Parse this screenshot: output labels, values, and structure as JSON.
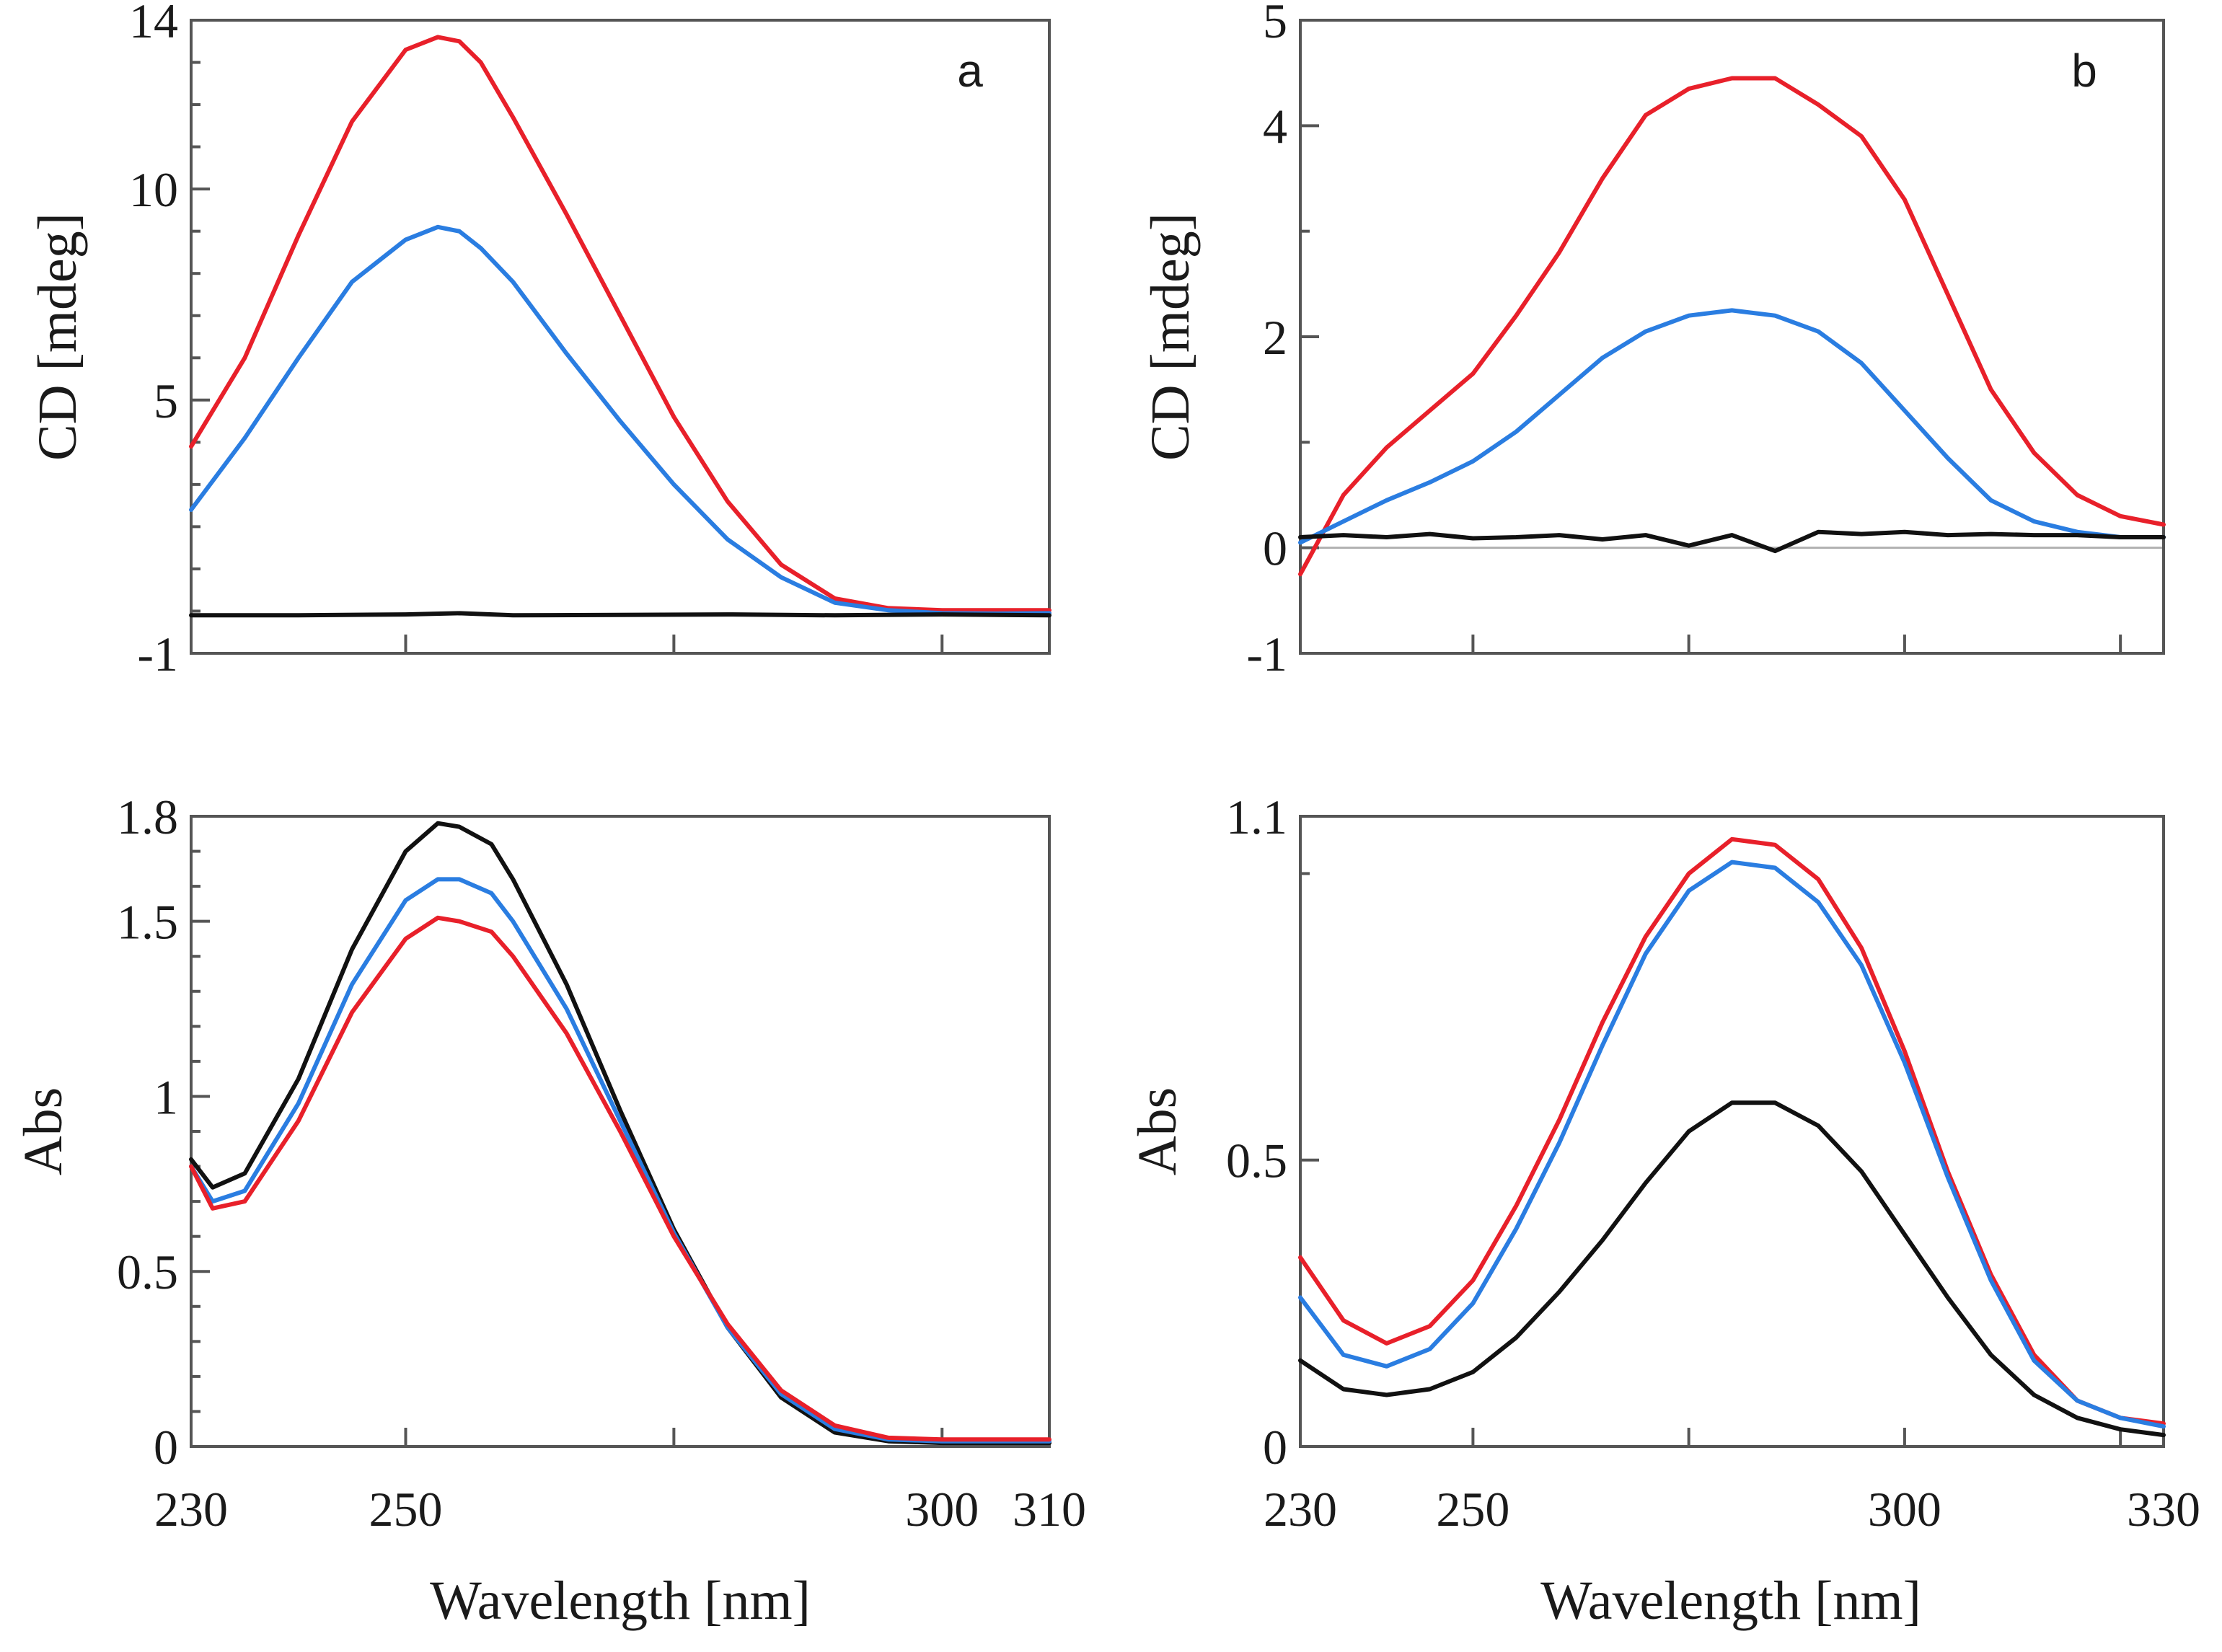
{
  "colors": {
    "red": "#e8202a",
    "blue": "#2a7de1",
    "black": "#111111"
  },
  "chart_data": [
    {
      "id": "cd-a",
      "type": "line",
      "panel_label": "a",
      "xlabel": "",
      "ylabel": "CD [mdeg]",
      "xlim": [
        230,
        310
      ],
      "ylim": [
        -1,
        14
      ],
      "ymajor": [
        {
          "v": 14,
          "label": "14"
        },
        {
          "v": 10,
          "label": "10"
        },
        {
          "v": 5,
          "label": "5"
        },
        {
          "v": -1,
          "label": "-1"
        }
      ],
      "yminor": [
        13,
        12,
        11,
        9,
        8,
        7,
        6,
        4,
        3,
        2,
        1,
        0
      ],
      "xticks": [
        250,
        275,
        300
      ],
      "xticklabels": [],
      "series": [
        {
          "name": "red",
          "color": "red",
          "x": [
            230,
            235,
            240,
            245,
            250,
            253,
            255,
            257,
            260,
            265,
            270,
            275,
            280,
            285,
            290,
            295,
            300,
            305,
            310
          ],
          "y": [
            3.9,
            6.0,
            8.9,
            11.6,
            13.3,
            13.6,
            13.5,
            13.0,
            11.7,
            9.4,
            7.0,
            4.6,
            2.6,
            1.1,
            0.3,
            0.07,
            0.02,
            0.02,
            0.02
          ]
        },
        {
          "name": "blue",
          "color": "blue",
          "x": [
            230,
            235,
            240,
            245,
            250,
            253,
            255,
            257,
            260,
            265,
            270,
            275,
            280,
            285,
            290,
            295,
            300,
            305,
            310
          ],
          "y": [
            2.4,
            4.1,
            6.0,
            7.8,
            8.8,
            9.1,
            9.0,
            8.6,
            7.8,
            6.1,
            4.5,
            3.0,
            1.7,
            0.8,
            0.2,
            0.02,
            -0.05,
            -0.06,
            -0.05
          ]
        },
        {
          "name": "black",
          "color": "black",
          "x": [
            230,
            240,
            250,
            255,
            260,
            270,
            280,
            290,
            300,
            310
          ],
          "y": [
            -0.1,
            -0.1,
            -0.08,
            -0.05,
            -0.1,
            -0.09,
            -0.08,
            -0.1,
            -0.08,
            -0.1
          ]
        }
      ]
    },
    {
      "id": "cd-b",
      "type": "line",
      "panel_label": "b",
      "xlabel": "",
      "ylabel": "CD [mdeg]",
      "xlim": [
        230,
        330
      ],
      "ylim": [
        -1,
        5
      ],
      "ymajor": [
        {
          "v": 5,
          "label": "5"
        },
        {
          "v": 4,
          "label": "4"
        },
        {
          "v": 2,
          "label": "2"
        },
        {
          "v": 0,
          "label": "0"
        },
        {
          "v": -1,
          "label": "-1"
        }
      ],
      "yminor": [
        3,
        1
      ],
      "xticks": [
        250,
        275,
        300,
        325
      ],
      "xticklabels": [],
      "zero_line": true,
      "series": [
        {
          "name": "red",
          "color": "red",
          "x": [
            230,
            235,
            240,
            245,
            250,
            255,
            260,
            265,
            270,
            275,
            280,
            285,
            290,
            295,
            300,
            305,
            310,
            315,
            320,
            325,
            330
          ],
          "y": [
            -0.25,
            0.5,
            0.95,
            1.3,
            1.65,
            2.2,
            2.8,
            3.5,
            4.1,
            4.35,
            4.45,
            4.45,
            4.2,
            3.9,
            3.3,
            2.4,
            1.5,
            0.9,
            0.5,
            0.3,
            0.22
          ]
        },
        {
          "name": "blue",
          "color": "blue",
          "x": [
            230,
            235,
            240,
            245,
            250,
            255,
            260,
            265,
            270,
            275,
            280,
            285,
            290,
            295,
            300,
            305,
            310,
            315,
            320,
            325,
            330
          ],
          "y": [
            0.05,
            0.25,
            0.45,
            0.62,
            0.82,
            1.1,
            1.45,
            1.8,
            2.05,
            2.2,
            2.25,
            2.2,
            2.05,
            1.75,
            1.3,
            0.85,
            0.45,
            0.25,
            0.15,
            0.1,
            0.1
          ]
        },
        {
          "name": "black",
          "color": "black",
          "x": [
            230,
            235,
            240,
            245,
            250,
            255,
            260,
            265,
            270,
            275,
            280,
            285,
            290,
            295,
            300,
            305,
            310,
            315,
            320,
            325,
            330
          ],
          "y": [
            0.1,
            0.12,
            0.1,
            0.13,
            0.09,
            0.1,
            0.12,
            0.08,
            0.12,
            0.02,
            0.12,
            -0.03,
            0.15,
            0.13,
            0.15,
            0.12,
            0.13,
            0.12,
            0.12,
            0.1,
            0.1
          ]
        }
      ]
    },
    {
      "id": "abs-a",
      "type": "line",
      "panel_label": "",
      "xlabel": "Wavelength [nm]",
      "ylabel": "Abs",
      "xlim": [
        230,
        310
      ],
      "ylim": [
        0,
        1.8
      ],
      "ymajor": [
        {
          "v": 1.8,
          "label": "1.8"
        },
        {
          "v": 1.5,
          "label": "1.5"
        },
        {
          "v": 1,
          "label": "1"
        },
        {
          "v": 0.5,
          "label": "0.5"
        },
        {
          "v": 0,
          "label": "0"
        }
      ],
      "yminor": [
        1.7,
        1.6,
        1.4,
        1.3,
        1.2,
        1.1,
        0.9,
        0.8,
        0.7,
        0.6,
        0.4,
        0.3,
        0.2,
        0.1
      ],
      "xticks": [
        230,
        250,
        275,
        300,
        310
      ],
      "xticklabels": [
        {
          "v": 230,
          "label": "230"
        },
        {
          "v": 250,
          "label": "250"
        },
        {
          "v": 300,
          "label": "300"
        },
        {
          "v": 310,
          "label": "310"
        }
      ],
      "series": [
        {
          "name": "black",
          "color": "black",
          "x": [
            230,
            232,
            235,
            240,
            245,
            250,
            253,
            255,
            258,
            260,
            265,
            270,
            275,
            280,
            285,
            290,
            295,
            300,
            305,
            310
          ],
          "y": [
            0.82,
            0.74,
            0.78,
            1.05,
            1.42,
            1.7,
            1.78,
            1.77,
            1.72,
            1.62,
            1.32,
            0.96,
            0.62,
            0.34,
            0.14,
            0.04,
            0.015,
            0.01,
            0.01,
            0.01
          ]
        },
        {
          "name": "blue",
          "color": "blue",
          "x": [
            230,
            232,
            235,
            240,
            245,
            250,
            253,
            255,
            258,
            260,
            265,
            270,
            275,
            280,
            285,
            290,
            295,
            300,
            305,
            310
          ],
          "y": [
            0.8,
            0.7,
            0.73,
            0.98,
            1.32,
            1.56,
            1.62,
            1.62,
            1.58,
            1.5,
            1.25,
            0.93,
            0.61,
            0.34,
            0.15,
            0.05,
            0.02,
            0.015,
            0.015,
            0.015
          ]
        },
        {
          "name": "red",
          "color": "red",
          "x": [
            230,
            232,
            235,
            240,
            245,
            250,
            253,
            255,
            258,
            260,
            265,
            270,
            275,
            280,
            285,
            290,
            295,
            300,
            305,
            310
          ],
          "y": [
            0.8,
            0.68,
            0.7,
            0.93,
            1.24,
            1.45,
            1.51,
            1.5,
            1.47,
            1.4,
            1.18,
            0.9,
            0.6,
            0.35,
            0.16,
            0.06,
            0.025,
            0.02,
            0.02,
            0.02
          ]
        }
      ]
    },
    {
      "id": "abs-b",
      "type": "line",
      "panel_label": "",
      "xlabel": "Wavelength [nm]",
      "ylabel": "Abs",
      "xlim": [
        230,
        330
      ],
      "ylim": [
        0,
        1.1
      ],
      "ymajor": [
        {
          "v": 1.1,
          "label": "1.1"
        },
        {
          "v": 0.5,
          "label": "0.5"
        },
        {
          "v": 0,
          "label": "0"
        }
      ],
      "yminor": [
        1.0
      ],
      "xticks": [
        230,
        250,
        275,
        300,
        325
      ],
      "xticklabels": [
        {
          "v": 230,
          "label": "230"
        },
        {
          "v": 250,
          "label": "250"
        },
        {
          "v": 300,
          "label": "300"
        },
        {
          "v": 330,
          "label": "330"
        }
      ],
      "series": [
        {
          "name": "red",
          "color": "red",
          "x": [
            230,
            235,
            240,
            245,
            250,
            255,
            260,
            265,
            270,
            275,
            280,
            285,
            290,
            295,
            300,
            305,
            310,
            315,
            320,
            325,
            330
          ],
          "y": [
            0.33,
            0.22,
            0.18,
            0.21,
            0.29,
            0.42,
            0.57,
            0.74,
            0.89,
            1.0,
            1.06,
            1.05,
            0.99,
            0.87,
            0.69,
            0.48,
            0.3,
            0.16,
            0.08,
            0.05,
            0.04
          ]
        },
        {
          "name": "blue",
          "color": "blue",
          "x": [
            230,
            235,
            240,
            245,
            250,
            255,
            260,
            265,
            270,
            275,
            280,
            285,
            290,
            295,
            300,
            305,
            310,
            315,
            320,
            325,
            330
          ],
          "y": [
            0.26,
            0.16,
            0.14,
            0.17,
            0.25,
            0.38,
            0.53,
            0.7,
            0.86,
            0.97,
            1.02,
            1.01,
            0.95,
            0.84,
            0.67,
            0.47,
            0.29,
            0.15,
            0.08,
            0.05,
            0.035
          ]
        },
        {
          "name": "black",
          "color": "black",
          "x": [
            230,
            235,
            240,
            245,
            250,
            255,
            260,
            265,
            270,
            275,
            280,
            285,
            290,
            295,
            300,
            305,
            310,
            315,
            320,
            325,
            330
          ],
          "y": [
            0.15,
            0.1,
            0.09,
            0.1,
            0.13,
            0.19,
            0.27,
            0.36,
            0.46,
            0.55,
            0.6,
            0.6,
            0.56,
            0.48,
            0.37,
            0.26,
            0.16,
            0.09,
            0.05,
            0.03,
            0.02
          ]
        }
      ]
    }
  ]
}
